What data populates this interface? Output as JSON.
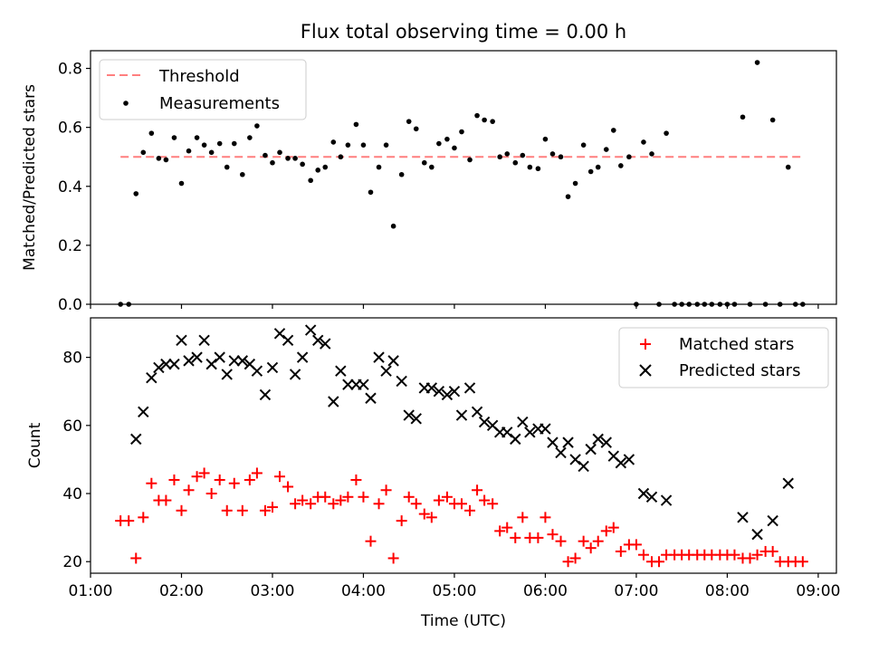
{
  "chart_data": [
    {
      "type": "scatter",
      "title": "Flux total observing time = 0.00 h",
      "xlabel": "",
      "ylabel": "Matched/Predicted stars",
      "xlim": [
        1.0,
        9.2
      ],
      "ylim": [
        0.0,
        0.86
      ],
      "xticks": [
        1,
        2,
        3,
        4,
        5,
        6,
        7,
        8,
        9
      ],
      "yticks": [
        0.0,
        0.2,
        0.4,
        0.6,
        0.8
      ],
      "ytick_labels": [
        "0.0",
        "0.2",
        "0.4",
        "0.6",
        "0.8"
      ],
      "legend": {
        "position": "top-left",
        "entries": [
          "Threshold",
          "Measurements"
        ]
      },
      "threshold": {
        "name": "Threshold",
        "x": [
          1.33,
          8.83
        ],
        "y": 0.5,
        "color": "#ff7f7f",
        "style": "dashed"
      },
      "series": [
        {
          "name": "Measurements",
          "color": "#000000",
          "marker": "dot",
          "x": [
            1.33,
            1.42,
            1.5,
            1.58,
            1.67,
            1.75,
            1.83,
            1.92,
            2.0,
            2.08,
            2.17,
            2.25,
            2.33,
            2.42,
            2.5,
            2.58,
            2.67,
            2.75,
            2.83,
            2.92,
            3.0,
            3.08,
            3.17,
            3.25,
            3.33,
            3.42,
            3.5,
            3.58,
            3.67,
            3.75,
            3.83,
            3.92,
            4.0,
            4.08,
            4.17,
            4.25,
            4.33,
            4.42,
            4.5,
            4.58,
            4.67,
            4.75,
            4.83,
            4.92,
            5.0,
            5.08,
            5.17,
            5.25,
            5.33,
            5.42,
            5.5,
            5.58,
            5.67,
            5.75,
            5.83,
            5.92,
            6.0,
            6.08,
            6.17,
            6.25,
            6.33,
            6.42,
            6.5,
            6.58,
            6.67,
            6.75,
            6.83,
            6.92,
            7.0,
            7.08,
            7.17,
            7.25,
            7.33,
            7.42,
            7.5,
            7.58,
            7.67,
            7.75,
            7.83,
            7.92,
            8.0,
            8.08,
            8.17,
            8.25,
            8.33,
            8.42,
            8.5,
            8.58,
            8.67,
            8.75,
            8.83
          ],
          "y": [
            0.0,
            0.0,
            0.375,
            0.515,
            0.58,
            0.495,
            0.49,
            0.565,
            0.41,
            0.52,
            0.565,
            0.54,
            0.515,
            0.545,
            0.465,
            0.545,
            0.44,
            0.565,
            0.605,
            0.505,
            0.48,
            0.515,
            0.495,
            0.495,
            0.475,
            0.42,
            0.455,
            0.465,
            0.55,
            0.5,
            0.54,
            0.61,
            0.54,
            0.38,
            0.465,
            0.54,
            0.265,
            0.44,
            0.62,
            0.595,
            0.48,
            0.465,
            0.545,
            0.56,
            0.53,
            0.585,
            0.49,
            0.64,
            0.625,
            0.62,
            0.5,
            0.51,
            0.48,
            0.505,
            0.465,
            0.46,
            0.56,
            0.51,
            0.5,
            0.365,
            0.41,
            0.54,
            0.45,
            0.465,
            0.525,
            0.59,
            0.47,
            0.5,
            0.0,
            0.55,
            0.51,
            0.0,
            0.58,
            0.0,
            0.0,
            0.0,
            0.0,
            0.0,
            0.0,
            0.0,
            0.0,
            0.0,
            0.635,
            0.0,
            0.82,
            0.0,
            0.625,
            0.0,
            0.465,
            0.0,
            0.0
          ]
        }
      ]
    },
    {
      "type": "scatter",
      "title": "",
      "xlabel": "Time (UTC)",
      "ylabel": "Count",
      "xlim": [
        1.0,
        9.2
      ],
      "ylim": [
        16.6,
        91.6
      ],
      "xticks": [
        1,
        2,
        3,
        4,
        5,
        6,
        7,
        8,
        9
      ],
      "xtick_labels": [
        "01:00",
        "02:00",
        "03:00",
        "04:00",
        "05:00",
        "06:00",
        "07:00",
        "08:00",
        "09:00"
      ],
      "yticks": [
        20,
        40,
        60,
        80
      ],
      "ytick_labels": [
        "20",
        "40",
        "60",
        "80"
      ],
      "legend": {
        "position": "top-right",
        "entries": [
          "Matched stars",
          "Predicted stars"
        ]
      },
      "series": [
        {
          "name": "Matched stars",
          "color": "#ff0000",
          "marker": "plus",
          "x": [
            1.33,
            1.42,
            1.5,
            1.58,
            1.67,
            1.75,
            1.83,
            1.92,
            2.0,
            2.08,
            2.17,
            2.25,
            2.33,
            2.42,
            2.5,
            2.58,
            2.67,
            2.75,
            2.83,
            2.92,
            3.0,
            3.08,
            3.17,
            3.25,
            3.33,
            3.42,
            3.5,
            3.58,
            3.67,
            3.75,
            3.83,
            3.92,
            4.0,
            4.08,
            4.17,
            4.25,
            4.33,
            4.42,
            4.5,
            4.58,
            4.67,
            4.75,
            4.83,
            4.92,
            5.0,
            5.08,
            5.17,
            5.25,
            5.33,
            5.42,
            5.5,
            5.58,
            5.67,
            5.75,
            5.83,
            5.92,
            6.0,
            6.08,
            6.17,
            6.25,
            6.33,
            6.42,
            6.5,
            6.58,
            6.67,
            6.75,
            6.83,
            6.92,
            7.0,
            7.08,
            7.17,
            7.25,
            7.33,
            7.42,
            7.5,
            7.58,
            7.67,
            7.75,
            7.83,
            7.92,
            8.0,
            8.08,
            8.17,
            8.25,
            8.33,
            8.42,
            8.5,
            8.58,
            8.67,
            8.75,
            8.83
          ],
          "y": [
            32,
            32,
            21,
            33,
            43,
            38,
            38,
            44,
            35,
            41,
            45,
            46,
            40,
            44,
            35,
            43,
            35,
            44,
            46,
            35,
            36,
            45,
            42,
            37,
            38,
            37,
            39,
            39,
            37,
            38,
            39,
            44,
            39,
            26,
            37,
            41,
            21,
            32,
            39,
            37,
            34,
            33,
            38,
            39,
            37,
            37,
            35,
            41,
            38,
            37,
            29,
            30,
            27,
            33,
            27,
            27,
            33,
            28,
            26,
            20,
            21,
            26,
            24,
            26,
            29,
            30,
            23,
            25,
            25,
            22,
            20,
            20,
            22,
            22,
            22,
            22,
            22,
            22,
            22,
            22,
            22,
            22,
            21,
            21,
            22,
            23,
            23,
            20,
            20,
            20,
            20
          ]
        },
        {
          "name": "Predicted stars",
          "color": "#000000",
          "marker": "x",
          "x": [
            1.5,
            1.58,
            1.67,
            1.75,
            1.83,
            1.92,
            2.0,
            2.08,
            2.17,
            2.25,
            2.33,
            2.42,
            2.5,
            2.58,
            2.67,
            2.75,
            2.83,
            2.92,
            3.0,
            3.08,
            3.17,
            3.25,
            3.33,
            3.42,
            3.5,
            3.58,
            3.67,
            3.75,
            3.83,
            3.92,
            4.0,
            4.08,
            4.17,
            4.25,
            4.33,
            4.42,
            4.5,
            4.58,
            4.67,
            4.75,
            4.83,
            4.92,
            5.0,
            5.08,
            5.17,
            5.25,
            5.33,
            5.42,
            5.5,
            5.58,
            5.67,
            5.75,
            5.83,
            5.92,
            6.0,
            6.08,
            6.17,
            6.25,
            6.33,
            6.42,
            6.5,
            6.58,
            6.67,
            6.75,
            6.83,
            6.92,
            7.08,
            7.17,
            7.33,
            8.17,
            8.33,
            8.5,
            8.67
          ],
          "y": [
            56,
            64,
            74,
            77,
            78,
            78,
            85,
            79,
            80,
            85,
            78,
            80,
            75,
            79,
            79,
            78,
            76,
            69,
            77,
            87,
            85,
            75,
            80,
            88,
            85,
            84,
            67,
            76,
            72,
            72,
            72,
            68,
            80,
            76,
            79,
            73,
            63,
            62,
            71,
            71,
            70,
            69,
            70,
            63,
            71,
            64,
            61,
            60,
            58,
            58,
            56,
            61,
            58,
            59,
            59,
            55,
            52,
            55,
            50,
            48,
            53,
            56,
            55,
            51,
            49,
            50,
            40,
            39,
            38,
            33,
            28,
            32,
            43
          ]
        }
      ]
    }
  ]
}
